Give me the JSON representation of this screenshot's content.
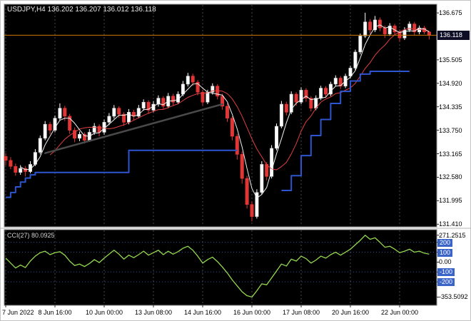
{
  "window": {
    "title": "USDJPY,H4"
  },
  "header": {
    "symbol_label": "USDJPY,H4 136.202 136.207 136.012 136.118"
  },
  "indicator_header": {
    "label": "CCI(27) 80.0925"
  },
  "colors": {
    "background": "#000000",
    "frame": "#808080",
    "bull": "#ffffff",
    "bear": "#e23636",
    "ma_fast": "#f0f0f0",
    "ma_slow": "#e04040",
    "stop_line": "#2d55d0",
    "trendline": "#4a4a4a",
    "bid_line": "#cc7a00",
    "cci_line": "#94d84f",
    "grid": "#474747",
    "level_line": "#2d4f9e",
    "level_box": "#3a64c8",
    "price_tag_bg": "#0d0d26"
  },
  "price_axis": {
    "current": {
      "text": "136.118",
      "value": 136.118
    },
    "labels": [
      {
        "text": "136.675",
        "value": 136.675
      },
      {
        "text": "135.505",
        "value": 135.505
      },
      {
        "text": "134.920",
        "value": 134.92
      },
      {
        "text": "134.335",
        "value": 134.335
      },
      {
        "text": "133.750",
        "value": 133.75
      },
      {
        "text": "133.165",
        "value": 133.165
      },
      {
        "text": "132.580",
        "value": 132.58
      },
      {
        "text": "131.995",
        "value": 131.995
      },
      {
        "text": "131.410",
        "value": 131.41
      }
    ]
  },
  "time_axis": {
    "labels": [
      {
        "bar": 0,
        "text": "7 Jun 2022"
      },
      {
        "bar": 10,
        "text": "8 Jun 16:00"
      },
      {
        "bar": 20,
        "text": "10 Jun 00:00"
      },
      {
        "bar": 30,
        "text": "13 Jun 08:00"
      },
      {
        "bar": 40,
        "text": "14 Jun 16:00"
      },
      {
        "bar": 50,
        "text": "16 Jun 00:00"
      },
      {
        "bar": 60,
        "text": "17 Jun 08:00"
      },
      {
        "bar": 70,
        "text": "20 Jun 16:00"
      },
      {
        "bar": 80,
        "text": "22 Jun 00:00"
      }
    ]
  },
  "indicator_axis": {
    "labels": [
      {
        "text": "271.2515",
        "value": 271.2515,
        "boxed": false
      },
      {
        "text": "200",
        "value": 200,
        "boxed": true
      },
      {
        "text": "100",
        "value": 100,
        "boxed": true
      },
      {
        "text": "0.00",
        "value": 0,
        "boxed": false
      },
      {
        "text": "-100",
        "value": -100,
        "boxed": true
      },
      {
        "text": "-200",
        "value": -200,
        "boxed": true
      },
      {
        "text": "-353.5092",
        "value": -353.5092,
        "boxed": false
      }
    ]
  },
  "chart_data": {
    "type": "candlestick",
    "title": "USDJPY H4",
    "symbol": "USDJPY",
    "timeframe": "H4",
    "quote": {
      "open": 136.202,
      "high": 136.207,
      "low": 136.012,
      "close": 136.118
    },
    "y_axis": {
      "min": 131.395,
      "max": 136.675
    },
    "x_range": "7 Jun 2022 - 23 Jun 2022",
    "candles": [
      [
        133.1,
        133.18,
        132.88,
        133.0
      ],
      [
        133.0,
        133.08,
        132.78,
        132.85
      ],
      [
        132.85,
        132.92,
        132.62,
        132.7
      ],
      [
        132.7,
        132.88,
        132.64,
        132.8
      ],
      [
        132.8,
        132.86,
        132.6,
        132.72
      ],
      [
        132.72,
        132.98,
        132.68,
        132.9
      ],
      [
        132.9,
        133.28,
        132.86,
        133.2
      ],
      [
        133.2,
        133.62,
        133.15,
        133.55
      ],
      [
        133.55,
        133.98,
        133.5,
        133.9
      ],
      [
        133.9,
        133.96,
        133.65,
        133.75
      ],
      [
        133.75,
        134.12,
        133.7,
        134.05
      ],
      [
        134.05,
        134.42,
        134.0,
        134.3
      ],
      [
        134.3,
        134.36,
        133.98,
        134.1
      ],
      [
        134.1,
        134.16,
        133.66,
        133.75
      ],
      [
        133.75,
        133.82,
        133.45,
        133.55
      ],
      [
        133.55,
        133.72,
        133.48,
        133.65
      ],
      [
        133.65,
        133.7,
        133.42,
        133.5
      ],
      [
        133.5,
        133.78,
        133.46,
        133.7
      ],
      [
        133.7,
        133.93,
        133.64,
        133.85
      ],
      [
        133.85,
        133.9,
        133.6,
        133.7
      ],
      [
        133.7,
        134.02,
        133.64,
        133.95
      ],
      [
        133.95,
        134.18,
        133.88,
        134.1
      ],
      [
        134.1,
        134.38,
        134.04,
        134.3
      ],
      [
        134.3,
        134.35,
        134.06,
        134.15
      ],
      [
        134.15,
        134.2,
        133.86,
        133.95
      ],
      [
        133.95,
        134.28,
        133.9,
        134.2
      ],
      [
        134.2,
        134.26,
        134.0,
        134.1
      ],
      [
        134.1,
        134.38,
        134.05,
        134.3
      ],
      [
        134.3,
        134.52,
        134.24,
        134.45
      ],
      [
        134.45,
        134.5,
        134.16,
        134.25
      ],
      [
        134.25,
        134.48,
        134.2,
        134.4
      ],
      [
        134.4,
        134.62,
        134.34,
        134.55
      ],
      [
        134.55,
        134.6,
        134.28,
        134.35
      ],
      [
        134.35,
        134.68,
        134.3,
        134.6
      ],
      [
        134.6,
        134.66,
        134.36,
        134.45
      ],
      [
        134.45,
        134.72,
        134.4,
        134.65
      ],
      [
        134.65,
        134.98,
        134.6,
        134.9
      ],
      [
        134.9,
        135.18,
        134.84,
        135.1
      ],
      [
        135.1,
        135.16,
        134.86,
        134.95
      ],
      [
        134.95,
        135.0,
        134.62,
        134.7
      ],
      [
        134.7,
        134.76,
        134.36,
        134.45
      ],
      [
        134.45,
        134.76,
        134.4,
        134.7
      ],
      [
        134.7,
        134.92,
        134.64,
        134.85
      ],
      [
        134.85,
        134.9,
        134.52,
        134.6
      ],
      [
        134.6,
        134.66,
        134.26,
        134.35
      ],
      [
        134.35,
        134.42,
        133.96,
        134.05
      ],
      [
        134.05,
        134.1,
        133.5,
        133.6
      ],
      [
        133.6,
        133.66,
        133.02,
        133.15
      ],
      [
        133.15,
        133.22,
        132.42,
        132.55
      ],
      [
        132.55,
        132.62,
        131.8,
        131.9
      ],
      [
        131.9,
        131.98,
        131.48,
        131.6
      ],
      [
        131.6,
        132.28,
        131.55,
        132.2
      ],
      [
        132.2,
        132.98,
        132.14,
        132.9
      ],
      [
        132.9,
        132.96,
        132.5,
        132.6
      ],
      [
        132.6,
        133.38,
        132.55,
        133.3
      ],
      [
        133.3,
        133.92,
        133.25,
        133.85
      ],
      [
        133.85,
        134.48,
        133.8,
        134.4
      ],
      [
        134.4,
        134.46,
        134.12,
        134.2
      ],
      [
        134.2,
        134.72,
        134.15,
        134.65
      ],
      [
        134.65,
        134.7,
        134.36,
        134.45
      ],
      [
        134.45,
        134.82,
        134.4,
        134.75
      ],
      [
        134.75,
        134.8,
        134.46,
        134.55
      ],
      [
        134.55,
        134.6,
        134.22,
        134.3
      ],
      [
        134.3,
        134.62,
        134.25,
        134.55
      ],
      [
        134.55,
        134.86,
        134.5,
        134.8
      ],
      [
        134.8,
        134.85,
        134.56,
        134.65
      ],
      [
        134.65,
        134.96,
        134.6,
        134.9
      ],
      [
        134.9,
        135.12,
        134.85,
        135.05
      ],
      [
        135.05,
        135.1,
        134.78,
        134.85
      ],
      [
        134.85,
        135.16,
        134.8,
        135.1
      ],
      [
        135.1,
        135.36,
        135.04,
        135.3
      ],
      [
        135.3,
        135.76,
        135.25,
        135.7
      ],
      [
        135.7,
        136.16,
        135.64,
        136.1
      ],
      [
        136.1,
        136.68,
        136.05,
        136.45
      ],
      [
        136.45,
        136.52,
        136.16,
        136.25
      ],
      [
        136.25,
        136.6,
        136.2,
        136.5
      ],
      [
        136.5,
        136.56,
        136.22,
        136.3
      ],
      [
        136.3,
        136.36,
        136.05,
        136.15
      ],
      [
        136.15,
        136.42,
        136.1,
        136.35
      ],
      [
        136.35,
        136.4,
        136.12,
        136.2
      ],
      [
        136.2,
        136.26,
        135.96,
        136.05
      ],
      [
        136.05,
        136.32,
        136.0,
        136.25
      ],
      [
        136.25,
        136.46,
        136.2,
        136.4
      ],
      [
        136.4,
        136.45,
        136.12,
        136.2
      ],
      [
        136.2,
        136.36,
        136.14,
        136.3
      ],
      [
        136.3,
        136.35,
        136.15,
        136.202
      ],
      [
        136.202,
        136.207,
        136.012,
        136.118
      ]
    ],
    "ma_fast_period": 4,
    "ma_slow_period": 10,
    "stop_line_segments": [
      [
        [
          0,
          132.08
        ],
        [
          1,
          132.08
        ],
        [
          1,
          132.2
        ],
        [
          2,
          132.2
        ],
        [
          2,
          132.34
        ],
        [
          3,
          132.34
        ],
        [
          3,
          132.46
        ],
        [
          4,
          132.46
        ],
        [
          4,
          132.56
        ],
        [
          5,
          132.56
        ],
        [
          5,
          132.64
        ],
        [
          6,
          132.64
        ],
        [
          6,
          132.7
        ],
        [
          25,
          132.7
        ],
        [
          25,
          133.25
        ],
        [
          47,
          133.25
        ]
      ],
      [
        [
          56,
          132.25
        ],
        [
          58,
          132.25
        ],
        [
          58,
          132.62
        ],
        [
          60,
          132.62
        ],
        [
          60,
          133.12
        ],
        [
          62,
          133.12
        ],
        [
          62,
          133.62
        ],
        [
          64,
          133.62
        ],
        [
          64,
          134.02
        ],
        [
          66,
          134.02
        ],
        [
          66,
          134.42
        ],
        [
          68,
          134.42
        ],
        [
          68,
          134.72
        ],
        [
          70,
          134.72
        ],
        [
          70,
          134.98
        ],
        [
          72,
          134.98
        ],
        [
          72,
          135.15
        ],
        [
          74,
          135.15
        ],
        [
          74,
          135.22
        ],
        [
          82,
          135.22
        ]
      ]
    ],
    "trendline": {
      "from_bar": 8,
      "from_value": 133.18,
      "to_bar": 44,
      "to_value": 134.4
    },
    "bid_line_value": 136.118,
    "indicator": {
      "type": "line",
      "name": "CCI",
      "period": 27,
      "current": 80.0925,
      "levels": [
        200,
        100,
        -100,
        -200
      ],
      "max": 271.2515,
      "min": -353.5092,
      "values": [
        40,
        -10,
        -60,
        -30,
        -55,
        10,
        60,
        95,
        110,
        75,
        95,
        105,
        70,
        10,
        -35,
        -20,
        -45,
        -15,
        25,
        -5,
        40,
        80,
        120,
        80,
        30,
        70,
        45,
        75,
        110,
        70,
        95,
        120,
        75,
        110,
        80,
        105,
        140,
        160,
        120,
        60,
        -10,
        25,
        50,
        5,
        -50,
        -110,
        -180,
        -240,
        -300,
        -340,
        -353.51,
        -290,
        -220,
        -230,
        -160,
        -90,
        -20,
        -40,
        30,
        10,
        60,
        35,
        -10,
        20,
        60,
        40,
        75,
        100,
        70,
        100,
        130,
        175,
        220,
        271.25,
        230,
        245,
        200,
        150,
        160,
        130,
        95,
        110,
        130,
        100,
        110,
        90,
        80.09
      ]
    }
  }
}
